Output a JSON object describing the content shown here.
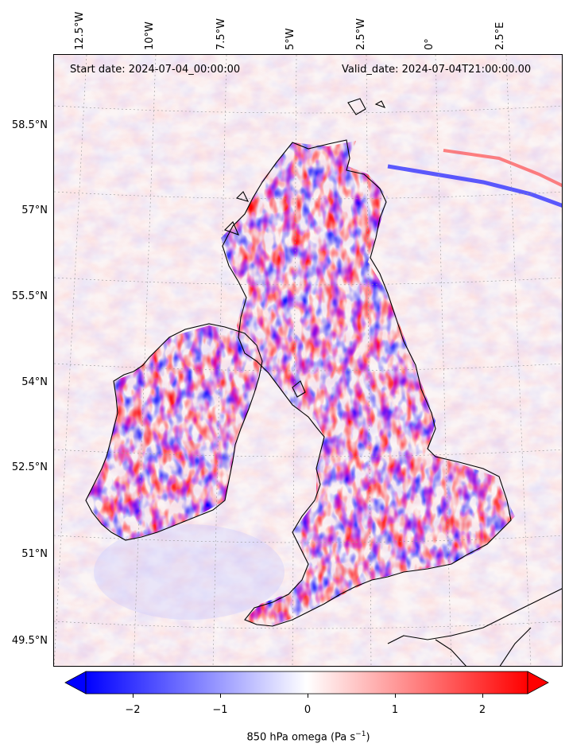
{
  "map": {
    "start_label": "Start date: 2024-07-04_00:00:00",
    "valid_label": "Valid_date: 2024-07-04T21:00:00.00",
    "lon_ticks": [
      "12.5°W",
      "10°W",
      "7.5°W",
      "5°W",
      "2.5°W",
      "0°",
      "2.5°E"
    ],
    "lat_ticks": [
      "58.5°N",
      "57°N",
      "55.5°N",
      "54°N",
      "52.5°N",
      "51°N",
      "49.5°N"
    ],
    "field": "omega",
    "colormap": "bwr",
    "colors": {
      "negative": "#0000ff",
      "neutral": "#ffffff",
      "positive": "#ff0000",
      "coastline": "#000000"
    }
  },
  "colorbar": {
    "label": "850 hPa omega (Pa s⁻¹)",
    "label_text": "850 hPa omega (Pa s",
    "label_sup": "−1",
    "label_close": ")",
    "ticks": [
      "−2",
      "−1",
      "0",
      "1",
      "2"
    ],
    "range": [
      -2.5,
      2.5
    ],
    "extend": "both"
  }
}
